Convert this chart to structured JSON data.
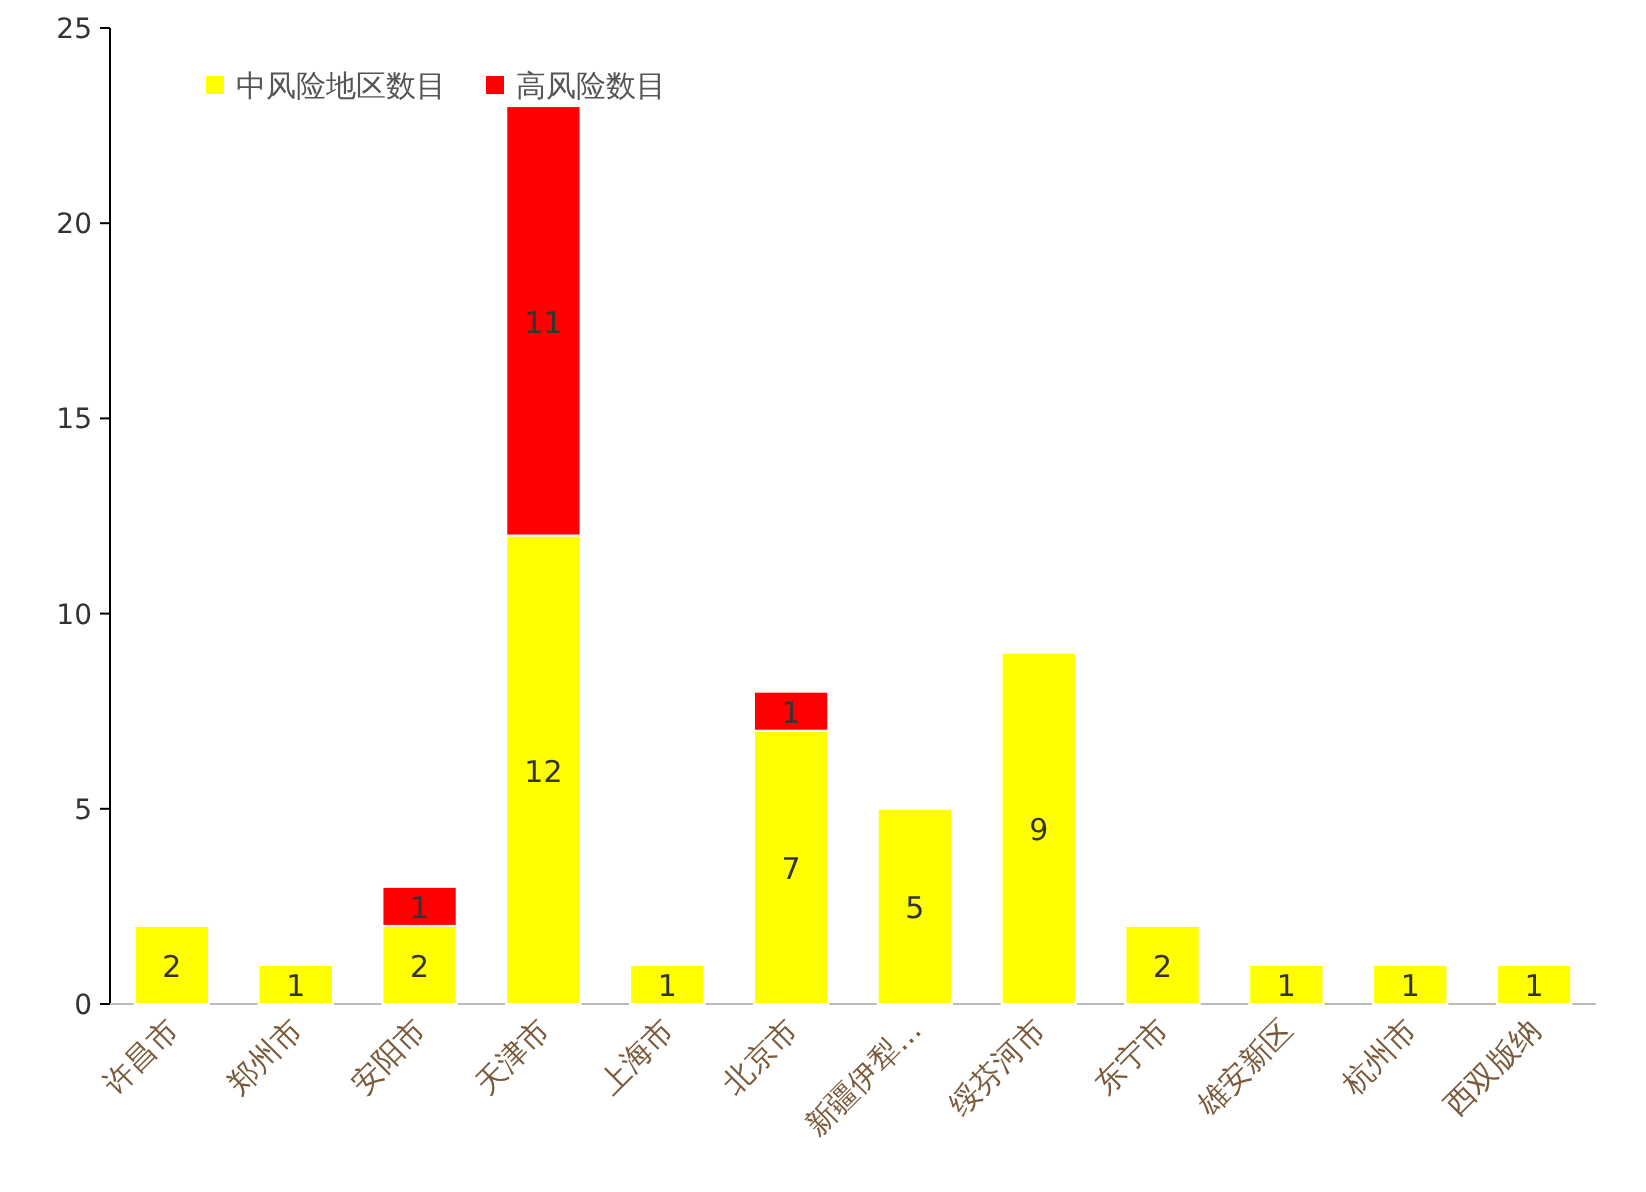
{
  "chart_data": {
    "type": "bar",
    "stacked": true,
    "data_labels": true,
    "legend": "top left",
    "categories": [
      "许昌市",
      "郑州市",
      "安阳市",
      "天津市",
      "上海市",
      "北京市",
      "新疆伊犁...",
      "绥芬河市",
      "东宁市",
      "雄安新区",
      "杭州市",
      "西双版纳"
    ],
    "series": [
      {
        "name": "中风险地区数目",
        "color": "#ffff00",
        "values": [
          2,
          1,
          2,
          12,
          1,
          7,
          5,
          9,
          2,
          1,
          1,
          1
        ]
      },
      {
        "name": "高风险数目",
        "color": "#ff0000",
        "values": [
          null,
          null,
          1,
          11,
          null,
          1,
          null,
          null,
          null,
          null,
          null,
          null
        ]
      }
    ],
    "ylim": [
      0,
      25
    ],
    "yticks": [
      0,
      5,
      10,
      15,
      20,
      25
    ]
  }
}
